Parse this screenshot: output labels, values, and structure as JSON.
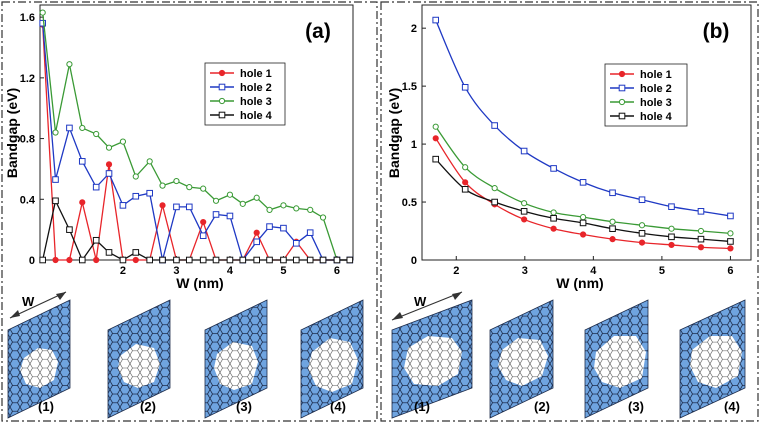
{
  "chart_data": [
    {
      "type": "line",
      "panel_label": "(a)",
      "xlabel": "W (nm)",
      "ylabel": "Bandgap (eV)",
      "xlim": [
        0.45,
        6.3
      ],
      "ylim": [
        0,
        1.68
      ],
      "xticks": [
        "2",
        "3",
        "4",
        "5",
        "6"
      ],
      "xtick_values": [
        2,
        3,
        4,
        5,
        6
      ],
      "yticks": [
        "0",
        "0.4",
        "0.8",
        "1.2",
        "1.6"
      ],
      "ytick_values": [
        0,
        0.4,
        0.8,
        1.2,
        1.6
      ],
      "legend_position": "top-right",
      "series": [
        {
          "name": "hole 1",
          "color": "#e8252a",
          "marker": "dot",
          "x": [
            0.5,
            0.74,
            1.0,
            1.24,
            1.5,
            1.74,
            2.0,
            2.24,
            2.5,
            2.74,
            3.0,
            3.24,
            3.5,
            3.74,
            4.0,
            4.24,
            4.5,
            4.74,
            5.0,
            5.24,
            5.5,
            5.74,
            6.0,
            6.24
          ],
          "y": [
            1.55,
            0.0,
            0.0,
            0.38,
            0.0,
            0.63,
            0.0,
            0.0,
            0.0,
            0.36,
            0.0,
            0.0,
            0.25,
            0.0,
            0.0,
            0.0,
            0.18,
            0.0,
            0.0,
            0.12,
            0.0,
            0.0,
            0.0,
            0.0
          ]
        },
        {
          "name": "hole 2",
          "color": "#1f39c4",
          "marker": "square",
          "x": [
            0.5,
            0.74,
            1.0,
            1.24,
            1.5,
            1.74,
            2.0,
            2.24,
            2.5,
            2.74,
            3.0,
            3.24,
            3.5,
            3.74,
            4.0,
            4.24,
            4.5,
            4.74,
            5.0,
            5.24,
            5.5,
            5.74,
            6.0,
            6.24
          ],
          "y": [
            1.56,
            0.53,
            0.87,
            0.65,
            0.48,
            0.57,
            0.36,
            0.42,
            0.44,
            0.0,
            0.35,
            0.35,
            0.16,
            0.3,
            0.29,
            0.0,
            0.12,
            0.22,
            0.21,
            0.11,
            0.18,
            0.0,
            0.0,
            0.0
          ]
        },
        {
          "name": "hole 3",
          "color": "#3a9a35",
          "marker": "circle",
          "x": [
            0.5,
            0.74,
            1.0,
            1.24,
            1.5,
            1.74,
            2.0,
            2.24,
            2.5,
            2.74,
            3.0,
            3.24,
            3.5,
            3.74,
            4.0,
            4.24,
            4.5,
            4.74,
            5.0,
            5.24,
            5.5,
            5.74,
            6.0,
            6.24
          ],
          "y": [
            1.63,
            0.84,
            1.29,
            0.87,
            0.83,
            0.74,
            0.78,
            0.55,
            0.65,
            0.49,
            0.52,
            0.48,
            0.47,
            0.39,
            0.43,
            0.37,
            0.41,
            0.33,
            0.36,
            0.34,
            0.33,
            0.28,
            0.0,
            0.0
          ]
        },
        {
          "name": "hole 4",
          "color": "#111111",
          "marker": "square",
          "x": [
            0.5,
            0.74,
            1.0,
            1.24,
            1.5,
            1.74,
            2.0,
            2.24,
            2.5,
            2.74,
            3.0,
            3.24,
            3.5,
            3.74,
            4.0,
            4.24,
            4.5,
            4.74,
            5.0,
            5.24,
            5.5,
            5.74,
            6.0,
            6.24
          ],
          "y": [
            0.0,
            0.39,
            0.2,
            0.0,
            0.13,
            0.05,
            0.0,
            0.05,
            0.0,
            0.0,
            0.0,
            0.0,
            0.0,
            0.0,
            0.0,
            0.0,
            0.0,
            0.0,
            0.0,
            0.0,
            0.0,
            0.0,
            0.0,
            0.0
          ]
        }
      ]
    },
    {
      "type": "line",
      "panel_label": "(b)",
      "xlabel": "W (nm)",
      "ylabel": "Bandgap (eV)",
      "xlim": [
        1.5,
        6.3
      ],
      "ylim": [
        0,
        2.2
      ],
      "xticks": [
        "2",
        "3",
        "4",
        "5",
        "6"
      ],
      "xtick_values": [
        2,
        3,
        4,
        5,
        6
      ],
      "yticks": [
        "0",
        "0.5",
        "1",
        "1.5",
        "2"
      ],
      "ytick_values": [
        0,
        0.5,
        1,
        1.5,
        2
      ],
      "legend_position": "top-right",
      "series": [
        {
          "name": "hole 1",
          "color": "#e8252a",
          "marker": "dot",
          "x": [
            1.7,
            2.13,
            2.56,
            2.99,
            3.42,
            3.85,
            4.28,
            4.71,
            5.14,
            5.57,
            6.0
          ],
          "y": [
            1.05,
            0.67,
            0.48,
            0.35,
            0.27,
            0.22,
            0.18,
            0.15,
            0.13,
            0.11,
            0.1
          ]
        },
        {
          "name": "hole 2",
          "color": "#1f39c4",
          "marker": "square",
          "x": [
            1.7,
            2.13,
            2.56,
            2.99,
            3.42,
            3.85,
            4.28,
            4.71,
            5.14,
            5.57,
            6.0
          ],
          "y": [
            2.07,
            1.49,
            1.16,
            0.94,
            0.79,
            0.67,
            0.58,
            0.52,
            0.46,
            0.42,
            0.38
          ]
        },
        {
          "name": "hole 3",
          "color": "#3a9a35",
          "marker": "circle",
          "x": [
            1.7,
            2.13,
            2.56,
            2.99,
            3.42,
            3.85,
            4.28,
            4.71,
            5.14,
            5.57,
            6.0
          ],
          "y": [
            1.15,
            0.8,
            0.62,
            0.49,
            0.41,
            0.37,
            0.33,
            0.3,
            0.27,
            0.25,
            0.23
          ]
        },
        {
          "name": "hole 4",
          "color": "#111111",
          "marker": "square",
          "x": [
            1.7,
            2.13,
            2.56,
            2.99,
            3.42,
            3.85,
            4.28,
            4.71,
            5.14,
            5.57,
            6.0
          ],
          "y": [
            0.87,
            0.61,
            0.5,
            0.42,
            0.36,
            0.32,
            0.27,
            0.23,
            0.2,
            0.18,
            0.16
          ]
        }
      ]
    }
  ],
  "schematics": {
    "width_label": "W",
    "labels": [
      "(1)",
      "(2)",
      "(3)",
      "(4)"
    ],
    "fill_color": "#6fa4e0",
    "description_hidden": "graphene nanoribbon unit cells with hole patterns"
  }
}
